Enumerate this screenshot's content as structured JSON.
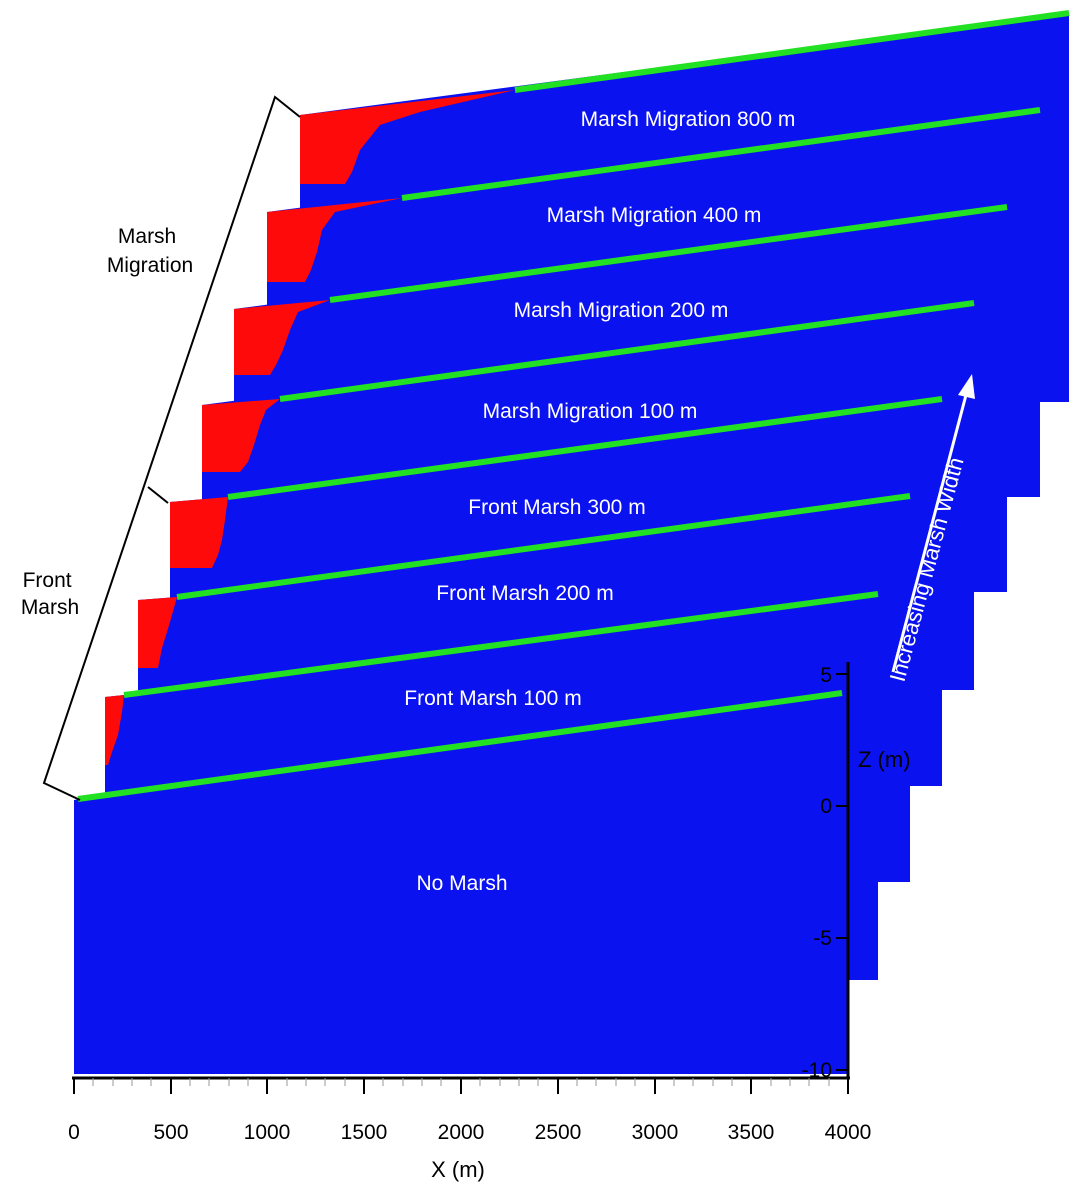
{
  "figure": {
    "colors": {
      "water": "#0a12f0",
      "marsh": "#ff0a0a",
      "surface": "#22e022",
      "axis": "#000000",
      "background": "#ffffff"
    },
    "slices": [
      {
        "label": "No Marsh",
        "marsh_kind": "none"
      },
      {
        "label": "Front Marsh 100 m",
        "marsh_kind": "front"
      },
      {
        "label": "Front Marsh 200 m",
        "marsh_kind": "front"
      },
      {
        "label": "Front Marsh 300 m",
        "marsh_kind": "front"
      },
      {
        "label": "Marsh Migration 100 m",
        "marsh_kind": "migration"
      },
      {
        "label": "Marsh Migration 200 m",
        "marsh_kind": "migration"
      },
      {
        "label": "Marsh Migration 400 m",
        "marsh_kind": "migration"
      },
      {
        "label": "Marsh Migration 800 m",
        "marsh_kind": "migration"
      }
    ],
    "brackets": {
      "front": {
        "label_line1": "Front",
        "label_line2": "Marsh"
      },
      "migration": {
        "label_line1": "Marsh",
        "label_line2": "Migration"
      }
    },
    "arrow_label": "Increasing Marsh Width",
    "x_axis": {
      "title": "X (m)",
      "ticks": [
        "0",
        "500",
        "1000",
        "1500",
        "2000",
        "2500",
        "3000",
        "3500",
        "4000"
      ]
    },
    "z_axis": {
      "title": "Z (m)",
      "ticks": [
        "5",
        "0",
        "-5",
        "-10"
      ]
    }
  }
}
